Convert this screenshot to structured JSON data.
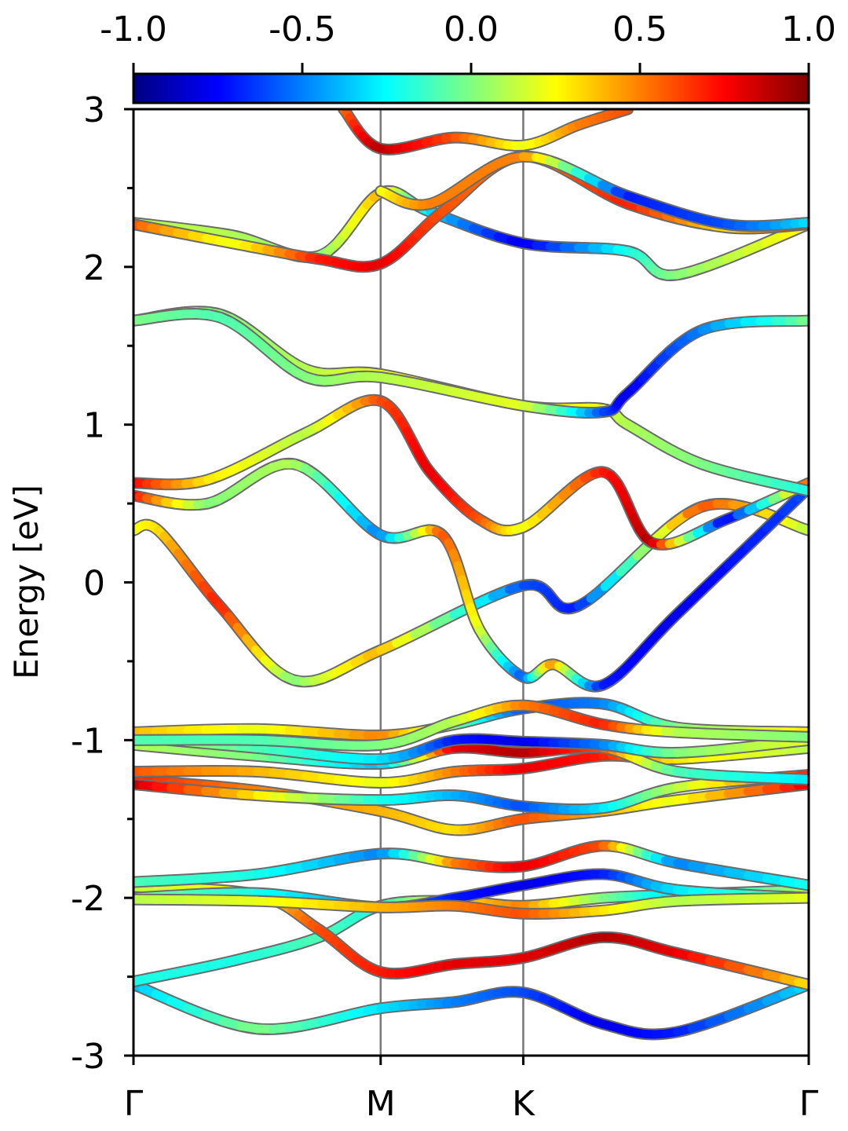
{
  "chart_data": {
    "type": "line",
    "title": "",
    "xlabel": "",
    "ylabel": "Energy [eV]",
    "ylim": [
      -3,
      3
    ],
    "y_ticks": [
      "-3",
      "-2",
      "-1",
      "0",
      "1",
      "2",
      "3"
    ],
    "y_tick_values": [
      -3,
      -2,
      -1,
      0,
      1,
      2,
      3
    ],
    "x_ticks": [
      {
        "label": "Γ",
        "x": 0
      },
      {
        "label": "M",
        "x": 1
      },
      {
        "label": "K",
        "x": 1.577
      },
      {
        "label": "Γ",
        "x": 2.732
      }
    ],
    "grid": false,
    "colorbar": {
      "colormap": "jet",
      "range": [
        -1,
        1
      ],
      "tick_labels": [
        "-1.0",
        "-0.5",
        "0.0",
        "0.5",
        "1.0"
      ],
      "tick_values": [
        -1,
        -0.5,
        0,
        0.5,
        1
      ]
    },
    "series": [
      {
        "x": [
          0,
          0.5,
          1,
          1.3,
          1.577,
          1.9,
          2.2,
          2.732
        ],
        "y": [
          -2.55,
          -2.83,
          -2.7,
          -2.66,
          -2.6,
          -2.8,
          -2.85,
          -2.55
        ],
        "c": [
          -0.4,
          0.0,
          -0.3,
          -0.5,
          -0.6,
          -0.8,
          -0.7,
          -0.3
        ]
      },
      {
        "x": [
          0,
          0.4,
          0.75,
          1,
          1.3,
          1.577,
          1.9,
          2.2,
          2.732
        ],
        "y": [
          -2.53,
          -2.4,
          -2.25,
          -2.05,
          -2.02,
          -2.05,
          -2.0,
          -1.98,
          -1.95
        ],
        "c": [
          -0.2,
          -0.2,
          -0.1,
          -0.2,
          0.3,
          0.5,
          0.0,
          -0.3,
          0.1
        ]
      },
      {
        "x": [
          0,
          0.5,
          0.75,
          1,
          1.3,
          1.577,
          1.9,
          2.2,
          2.732
        ],
        "y": [
          -1.93,
          -1.98,
          -2.2,
          -2.47,
          -2.42,
          -2.38,
          -2.25,
          -2.35,
          -2.55
        ],
        "c": [
          0.1,
          0.3,
          0.6,
          0.7,
          0.8,
          0.8,
          0.9,
          0.8,
          0.3
        ]
      },
      {
        "x": [
          0,
          0.5,
          1,
          1.3,
          1.577,
          1.9,
          2.2,
          2.732
        ],
        "y": [
          -1.9,
          -1.85,
          -1.72,
          -1.78,
          -1.8,
          -1.67,
          -1.78,
          -1.92
        ],
        "c": [
          -0.1,
          -0.2,
          -0.5,
          0.5,
          0.8,
          0.6,
          -0.5,
          -0.2
        ]
      },
      {
        "x": [
          0,
          0.5,
          1,
          1.3,
          1.577,
          1.9,
          2.2,
          2.732
        ],
        "y": [
          -2.0,
          -1.97,
          -2.06,
          -2.0,
          -1.92,
          -1.85,
          -1.95,
          -2.0
        ],
        "c": [
          0.0,
          -0.2,
          -0.5,
          -0.7,
          -0.8,
          -0.7,
          -0.3,
          0.0
        ]
      },
      {
        "x": [
          0,
          0.5,
          1,
          1.3,
          1.577,
          1.9,
          2.2,
          2.732
        ],
        "y": [
          -2.01,
          -2.02,
          -2.06,
          -2.05,
          -2.1,
          -2.08,
          -2.02,
          -2.0
        ],
        "c": [
          0.1,
          0.2,
          0.4,
          0.5,
          0.6,
          0.3,
          0.1,
          0.2
        ]
      },
      {
        "x": [
          0,
          0.5,
          1,
          1.3,
          1.577,
          1.9,
          2.2,
          2.732
        ],
        "y": [
          -1.25,
          -1.32,
          -1.45,
          -1.57,
          -1.5,
          -1.45,
          -1.38,
          -1.28
        ],
        "c": [
          0.7,
          0.5,
          0.4,
          0.3,
          0.6,
          0.4,
          0.2,
          0.8
        ]
      },
      {
        "x": [
          0,
          0.5,
          1,
          1.3,
          1.577,
          1.9,
          2.2,
          2.732
        ],
        "y": [
          -1.28,
          -1.35,
          -1.38,
          -1.35,
          -1.42,
          -1.43,
          -1.3,
          -1.22
        ],
        "c": [
          0.9,
          0.3,
          -0.2,
          -0.4,
          -0.6,
          -0.3,
          0.1,
          0.7
        ]
      },
      {
        "x": [
          0,
          0.5,
          1,
          1.3,
          1.577,
          1.9,
          2.2,
          2.732
        ],
        "y": [
          -1.2,
          -1.2,
          -1.27,
          -1.2,
          -1.18,
          -1.1,
          -1.12,
          -1.05
        ],
        "c": [
          0.6,
          0.4,
          0.2,
          0.5,
          0.8,
          0.7,
          0.3,
          0.1
        ]
      },
      {
        "x": [
          0,
          0.5,
          1,
          1.3,
          1.577,
          1.9,
          2.2,
          2.732
        ],
        "y": [
          -1.03,
          -1.1,
          -1.15,
          -1.05,
          -1.08,
          -1.05,
          -1.2,
          -1.25
        ],
        "c": [
          0.1,
          0.0,
          -0.4,
          0.8,
          0.9,
          0.6,
          -0.1,
          -0.3
        ]
      },
      {
        "x": [
          0,
          0.5,
          1,
          1.3,
          1.577,
          1.9,
          2.2,
          2.732
        ],
        "y": [
          -0.98,
          -1.05,
          -1.12,
          -1.0,
          -1.01,
          -1.03,
          -1.08,
          -1.0
        ],
        "c": [
          0.2,
          -0.1,
          -0.3,
          -0.7,
          -0.8,
          -0.5,
          0.0,
          0.2
        ]
      },
      {
        "x": [
          0,
          0.5,
          1,
          1.3,
          1.577,
          1.9,
          2.2,
          2.732
        ],
        "y": [
          -0.95,
          -0.93,
          -0.97,
          -0.9,
          -0.8,
          -0.77,
          -0.92,
          -0.95
        ],
        "c": [
          0.4,
          0.2,
          0.5,
          0.0,
          -0.6,
          -0.5,
          0.0,
          0.3
        ]
      },
      {
        "x": [
          0,
          0.5,
          1,
          1.3,
          1.577,
          1.9,
          2.2,
          2.732
        ],
        "y": [
          -1.0,
          -1.0,
          -1.03,
          -0.88,
          -0.78,
          -0.9,
          -0.95,
          -0.98
        ],
        "c": [
          -0.1,
          -0.1,
          0.0,
          0.1,
          0.5,
          0.7,
          0.1,
          0.0
        ]
      },
      {
        "x": [
          0,
          0.1,
          0.35,
          0.65,
          1,
          1.577,
          1.8,
          2.3,
          2.732
        ],
        "y": [
          0.33,
          0.33,
          -0.15,
          -0.62,
          -0.43,
          -0.02,
          -0.15,
          0.48,
          0.33
        ],
        "c": [
          0.2,
          0.3,
          0.7,
          0.0,
          0.4,
          -0.6,
          -0.7,
          0.6,
          0.1
        ]
      },
      {
        "x": [
          0,
          0.3,
          0.65,
          1,
          1.25,
          1.4,
          1.577,
          1.7,
          1.9,
          2.2,
          2.732
        ],
        "y": [
          0.55,
          0.5,
          0.75,
          0.3,
          0.3,
          -0.3,
          -0.6,
          -0.52,
          -0.65,
          -0.2,
          0.6
        ],
        "c": [
          0.8,
          0.0,
          0.1,
          -0.5,
          0.6,
          0.2,
          -0.6,
          0.5,
          -0.7,
          -0.8,
          -0.6
        ]
      },
      {
        "x": [
          0,
          0.3,
          0.7,
          1,
          1.2,
          1.4,
          1.577,
          1.9,
          2.1,
          2.4,
          2.732
        ],
        "y": [
          0.63,
          0.65,
          0.95,
          1.15,
          0.7,
          0.4,
          0.35,
          0.7,
          0.25,
          0.4,
          0.63
        ],
        "c": [
          0.8,
          0.3,
          0.1,
          0.6,
          0.8,
          0.6,
          0.2,
          0.7,
          0.9,
          -0.8,
          0.6
        ]
      },
      {
        "x": [
          0,
          0.35,
          0.7,
          1,
          1.577,
          1.9,
          2.0,
          2.3,
          2.732
        ],
        "y": [
          1.66,
          1.7,
          1.35,
          1.32,
          1.12,
          1.1,
          1.0,
          0.75,
          0.58
        ],
        "c": [
          0.1,
          0.0,
          0.1,
          0.2,
          0.3,
          0.2,
          0.1,
          0.0,
          -0.2
        ]
      },
      {
        "x": [
          0,
          0.35,
          0.7,
          1,
          1.577,
          1.9,
          2.0,
          2.3,
          2.732
        ],
        "y": [
          1.66,
          1.68,
          1.3,
          1.3,
          1.12,
          1.08,
          1.2,
          1.6,
          1.66
        ],
        "c": [
          0.0,
          -0.1,
          0.0,
          0.1,
          0.2,
          -0.6,
          -0.8,
          -0.5,
          0.0
        ]
      },
      {
        "x": [
          0,
          0.4,
          0.75,
          1,
          1.2,
          1.577,
          2.0,
          2.2,
          2.732
        ],
        "y": [
          2.28,
          2.2,
          2.07,
          2.47,
          2.35,
          2.15,
          2.1,
          1.95,
          2.27
        ],
        "c": [
          0.1,
          0.1,
          0.0,
          0.4,
          -0.3,
          -0.8,
          -0.2,
          0.0,
          0.3
        ]
      },
      {
        "x": [
          0,
          0.4,
          0.75,
          1,
          1.25,
          1.577,
          2.0,
          2.4,
          2.732
        ],
        "y": [
          2.27,
          2.15,
          2.05,
          2.02,
          2.35,
          2.7,
          2.4,
          2.25,
          2.27
        ],
        "c": [
          0.6,
          0.2,
          0.7,
          0.8,
          0.6,
          0.5,
          0.7,
          0.3,
          0.8
        ]
      },
      {
        "x": [
          1,
          1.2,
          1.577,
          2.0,
          2.4,
          2.732
        ],
        "y": [
          2.48,
          2.4,
          2.7,
          2.45,
          2.27,
          2.28
        ],
        "c": [
          0.2,
          0.5,
          0.5,
          -0.7,
          -0.6,
          -0.3
        ]
      },
      {
        "x": [
          0.85,
          1,
          1.3,
          1.577,
          1.8,
          2.0
        ],
        "y": [
          3.0,
          2.75,
          2.82,
          2.77,
          2.9,
          3.0
        ],
        "c": [
          0.5,
          0.9,
          0.6,
          0.2,
          0.5,
          0.6
        ]
      }
    ]
  }
}
